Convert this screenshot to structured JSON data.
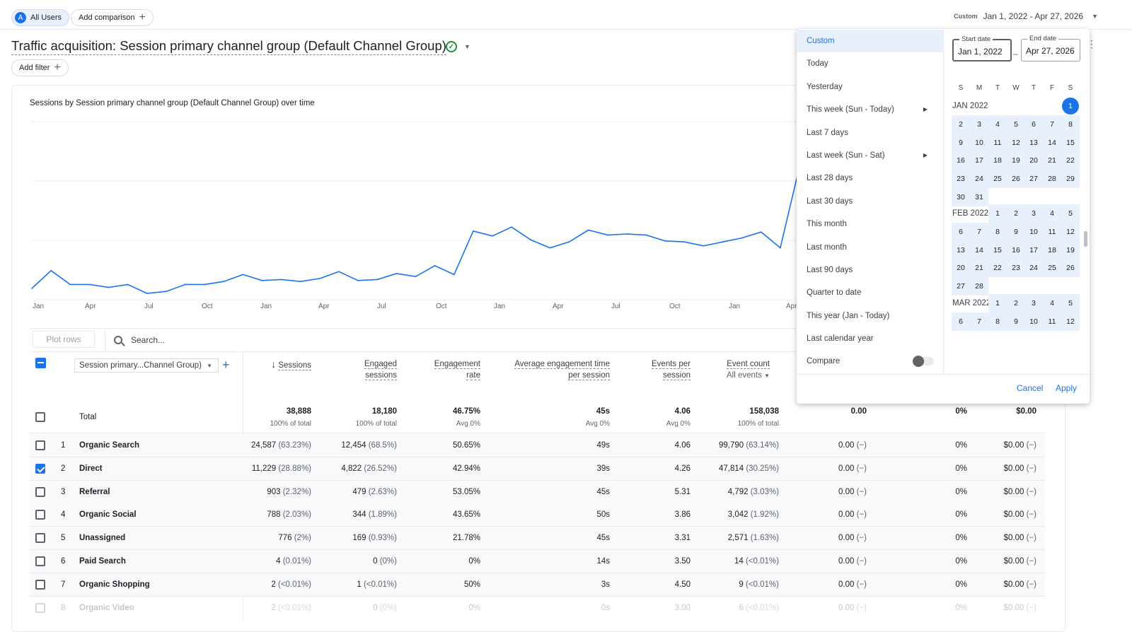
{
  "topbar": {
    "users_avatar": "A",
    "users_label": "All Users",
    "comparison_label": "Add comparison",
    "date_tag": "Custom",
    "date_range": "Jan 1, 2022 - Apr 27, 2026"
  },
  "report": {
    "title": "Traffic acquisition: Session primary channel group (Default Channel Group)",
    "add_filter": "Add filter"
  },
  "chart": {
    "title": "Sessions by Session primary channel group (Default Channel Group) over time",
    "x_ticks": [
      "Jan",
      "Apr",
      "Jul",
      "Oct",
      "Jan",
      "Apr",
      "Jul",
      "Oct",
      "Jan",
      "Apr",
      "Jul",
      "Oct",
      "Jan",
      "Apr"
    ]
  },
  "chart_data": {
    "type": "line",
    "title": "Sessions by Session primary channel group (Default Channel Group) over time",
    "xlabel": "",
    "ylabel": "",
    "x_ticks": [
      "Jan",
      "Apr",
      "Jul",
      "Oct",
      "Jan",
      "Apr",
      "Jul",
      "Oct",
      "Jan",
      "Apr",
      "Jul",
      "Oct",
      "Jan",
      "Apr"
    ],
    "series": [
      {
        "values": [
          10,
          28,
          14,
          14,
          11,
          14,
          5,
          7,
          14,
          14,
          17,
          24,
          18,
          19,
          17,
          20,
          27,
          18,
          19,
          25,
          22,
          33,
          24,
          68,
          63,
          72,
          59,
          51,
          57,
          69,
          64,
          65,
          64,
          58,
          57,
          53,
          57,
          61,
          67,
          51,
          133
        ]
      }
    ],
    "grid": true
  },
  "table": {
    "plot_rows": "Plot rows",
    "search_placeholder": "Search...",
    "dimension": "Session primary...Channel Group)",
    "headers": {
      "sessions": "Sessions",
      "engaged_1": "Engaged",
      "engaged_2": "sessions",
      "eng_rate_1": "Engagement",
      "eng_rate_2": "rate",
      "avg_time_1": "Average engagement time",
      "avg_time_2": "per session",
      "events_per_1": "Events per",
      "events_per_2": "session",
      "event_count": "Event count",
      "event_filter": "All events"
    },
    "total": {
      "label": "Total",
      "sessions": "38,888",
      "sessions_sub": "100% of total",
      "engaged": "18,180",
      "engaged_sub": "100% of total",
      "rate": "46.75%",
      "rate_sub": "Avg 0%",
      "time": "45s",
      "time_sub": "Avg 0%",
      "epsession": "4.06",
      "epsession_sub": "Avg 0%",
      "events": "158,038",
      "events_sub": "100% of total",
      "c1": "0.00",
      "c2": "0%",
      "c3": "$0.00"
    },
    "rows": [
      {
        "n": "1",
        "name": "Organic Search",
        "sessions": "24,587",
        "sessions_pct": "(63.23%)",
        "engaged": "12,454",
        "engaged_pct": "(68.5%)",
        "rate": "50.65%",
        "time": "49s",
        "eps": "4.06",
        "events": "99,790",
        "events_pct": "(63.14%)",
        "c1": "0.00",
        "c1_pct": "(−)",
        "c2": "0%",
        "c3": "$0.00",
        "c3_pct": "(−)",
        "checked": false
      },
      {
        "n": "2",
        "name": "Direct",
        "sessions": "11,229",
        "sessions_pct": "(28.88%)",
        "engaged": "4,822",
        "engaged_pct": "(26.52%)",
        "rate": "42.94%",
        "time": "39s",
        "eps": "4.26",
        "events": "47,814",
        "events_pct": "(30.25%)",
        "c1": "0.00",
        "c1_pct": "(−)",
        "c2": "0%",
        "c3": "$0.00",
        "c3_pct": "(−)",
        "checked": true
      },
      {
        "n": "3",
        "name": "Referral",
        "sessions": "903",
        "sessions_pct": "(2.32%)",
        "engaged": "479",
        "engaged_pct": "(2.63%)",
        "rate": "53.05%",
        "time": "45s",
        "eps": "5.31",
        "events": "4,792",
        "events_pct": "(3.03%)",
        "c1": "0.00",
        "c1_pct": "(−)",
        "c2": "0%",
        "c3": "$0.00",
        "c3_pct": "(−)",
        "checked": false
      },
      {
        "n": "4",
        "name": "Organic Social",
        "sessions": "788",
        "sessions_pct": "(2.03%)",
        "engaged": "344",
        "engaged_pct": "(1.89%)",
        "rate": "43.65%",
        "time": "50s",
        "eps": "3.86",
        "events": "3,042",
        "events_pct": "(1.92%)",
        "c1": "0.00",
        "c1_pct": "(−)",
        "c2": "0%",
        "c3": "$0.00",
        "c3_pct": "(−)",
        "checked": false
      },
      {
        "n": "5",
        "name": "Unassigned",
        "sessions": "776",
        "sessions_pct": "(2%)",
        "engaged": "169",
        "engaged_pct": "(0.93%)",
        "rate": "21.78%",
        "time": "45s",
        "eps": "3.31",
        "events": "2,571",
        "events_pct": "(1.63%)",
        "c1": "0.00",
        "c1_pct": "(−)",
        "c2": "0%",
        "c3": "$0.00",
        "c3_pct": "(−)",
        "checked": false
      },
      {
        "n": "6",
        "name": "Paid Search",
        "sessions": "4",
        "sessions_pct": "(0.01%)",
        "engaged": "0",
        "engaged_pct": "(0%)",
        "rate": "0%",
        "time": "14s",
        "eps": "3.50",
        "events": "14",
        "events_pct": "(<0.01%)",
        "c1": "0.00",
        "c1_pct": "(−)",
        "c2": "0%",
        "c3": "$0.00",
        "c3_pct": "(−)",
        "checked": false
      },
      {
        "n": "7",
        "name": "Organic Shopping",
        "sessions": "2",
        "sessions_pct": "(<0.01%)",
        "engaged": "1",
        "engaged_pct": "(<0.01%)",
        "rate": "50%",
        "time": "3s",
        "eps": "4.50",
        "events": "9",
        "events_pct": "(<0.01%)",
        "c1": "0.00",
        "c1_pct": "(−)",
        "c2": "0%",
        "c3": "$0.00",
        "c3_pct": "(−)",
        "checked": false
      },
      {
        "n": "8",
        "name": "Organic Video",
        "sessions": "2",
        "sessions_pct": "(<0.01%)",
        "engaged": "0",
        "engaged_pct": "(0%)",
        "rate": "0%",
        "time": "0s",
        "eps": "3.00",
        "events": "6",
        "events_pct": "(<0.01%)",
        "c1": "0.00",
        "c1_pct": "(−)",
        "c2": "0%",
        "c3": "$0.00",
        "c3_pct": "(−)",
        "checked": false
      }
    ]
  },
  "datepicker": {
    "options": [
      "Custom",
      "Today",
      "Yesterday",
      "This week (Sun - Today)",
      "Last 7 days",
      "Last week (Sun - Sat)",
      "Last 28 days",
      "Last 30 days",
      "This month",
      "Last month",
      "Last 90 days",
      "Quarter to date",
      "This year (Jan - Today)",
      "Last calendar year"
    ],
    "selected": "Custom",
    "compare_label": "Compare",
    "start_label": "Start date",
    "start_value": "Jan 1, 2022",
    "end_label": "End date",
    "end_value": "Apr 27, 2026",
    "dash": "–",
    "weekdays": [
      "S",
      "M",
      "T",
      "W",
      "T",
      "F",
      "S"
    ],
    "months": [
      {
        "label": "JAN 2022",
        "start_dow": 6,
        "days": 31
      },
      {
        "label": "FEB 2022",
        "start_dow": 2,
        "days": 28
      },
      {
        "label": "MAR 2022",
        "start_dow": 2,
        "days": 12
      }
    ],
    "cancel": "Cancel",
    "apply": "Apply",
    "colors": {
      "accent": "#1a73e8",
      "range": "#e8f0fe"
    }
  }
}
